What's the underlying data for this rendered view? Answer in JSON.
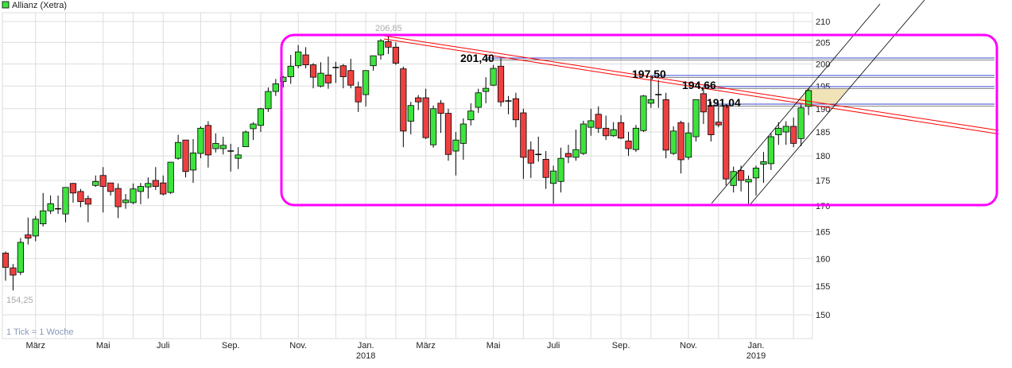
{
  "legend": {
    "label": "Allianz (Xetra)",
    "color": "#3de43d"
  },
  "note": "1 Tick = 1 Woche",
  "annotations": {
    "high": "206,85",
    "low": "154,25",
    "level1": "201,40",
    "level2": "197,50",
    "level3": "194,66",
    "level4": "191,04"
  },
  "colors": {
    "up": "#3de43d",
    "down": "#ef4040",
    "box": "#ff00ff",
    "trend": "#ff0000",
    "support": "#3344cc",
    "zone": "#efe0b0"
  },
  "chart_data": {
    "type": "candlestick",
    "title": "Allianz (Xetra)",
    "interval": "1 Tick = 1 Woche",
    "y_scale": "log",
    "ylim": [
      146,
      212
    ],
    "grid": true,
    "legend": "top-left",
    "y_ticks": [
      150,
      155,
      160,
      165,
      170,
      175,
      180,
      185,
      190,
      195,
      200,
      205,
      210
    ],
    "x_ticks": [
      {
        "week": 4,
        "label": "März",
        "year": ""
      },
      {
        "week": 13,
        "label": "Mai",
        "year": ""
      },
      {
        "week": 21,
        "label": "Juli",
        "year": ""
      },
      {
        "week": 30,
        "label": "Sep.",
        "year": ""
      },
      {
        "week": 39,
        "label": "Nov.",
        "year": ""
      },
      {
        "week": 48,
        "label": "Jan.",
        "year": "2018"
      },
      {
        "week": 56,
        "label": "März",
        "year": ""
      },
      {
        "week": 65,
        "label": "Mai",
        "year": ""
      },
      {
        "week": 73,
        "label": "Juli",
        "year": ""
      },
      {
        "week": 82,
        "label": "Sep.",
        "year": ""
      },
      {
        "week": 91,
        "label": "Nov.",
        "year": ""
      },
      {
        "week": 100,
        "label": "Jan.",
        "year": "2019"
      }
    ],
    "ohlc_fields": [
      "open",
      "high",
      "low",
      "close"
    ],
    "candles": [
      [
        161.0,
        161.3,
        156.0,
        158.4
      ],
      [
        158.3,
        159.0,
        154.25,
        157.0
      ],
      [
        157.5,
        163.8,
        157.0,
        163.0
      ],
      [
        164.4,
        167.7,
        162.6,
        163.8
      ],
      [
        164.2,
        168.0,
        163.2,
        167.4
      ],
      [
        166.5,
        172.5,
        166.0,
        169.0
      ],
      [
        169.0,
        172.0,
        168.4,
        170.4
      ],
      [
        169.4,
        172.0,
        168.4,
        169.4
      ],
      [
        168.4,
        173.6,
        166.8,
        173.6
      ],
      [
        174.4,
        174.5,
        170.6,
        172.5
      ],
      [
        172.8,
        173.3,
        169.7,
        170.8
      ],
      [
        171.4,
        172.0,
        166.8,
        170.3
      ],
      [
        174.0,
        176.0,
        173.7,
        174.8
      ],
      [
        176.0,
        177.7,
        168.7,
        173.8
      ],
      [
        174.5,
        174.5,
        172.0,
        172.8
      ],
      [
        173.4,
        174.4,
        167.6,
        169.8
      ],
      [
        170.6,
        172.3,
        169.4,
        171.1
      ],
      [
        170.6,
        174.4,
        170.3,
        173.3
      ],
      [
        172.8,
        174.5,
        170.3,
        173.8
      ],
      [
        173.7,
        175.6,
        171.4,
        174.4
      ],
      [
        175.0,
        177.7,
        173.1,
        173.8
      ],
      [
        174.5,
        176.0,
        172.0,
        172.3
      ],
      [
        172.6,
        178.7,
        172.3,
        178.7
      ],
      [
        179.5,
        184.4,
        179.2,
        182.8
      ],
      [
        183.3,
        183.3,
        175.6,
        176.8
      ],
      [
        177.1,
        183.5,
        174.5,
        180.6
      ],
      [
        180.5,
        186.2,
        179.5,
        185.8
      ],
      [
        186.4,
        187.3,
        177.6,
        180.2
      ],
      [
        181.5,
        184.7,
        180.7,
        182.6
      ],
      [
        181.5,
        184.0,
        180.3,
        182.2
      ],
      [
        181.0,
        182.5,
        176.8,
        181.0
      ],
      [
        179.5,
        181.8,
        177.3,
        180.2
      ],
      [
        181.9,
        185.3,
        181.9,
        185.0
      ],
      [
        185.7,
        187.1,
        183.3,
        186.7
      ],
      [
        186.4,
        190.2,
        185.0,
        190.0
      ],
      [
        190.0,
        194.7,
        189.3,
        193.8
      ],
      [
        193.8,
        196.6,
        192.8,
        195.5
      ],
      [
        196.0,
        197.3,
        194.7,
        197.0
      ],
      [
        197.1,
        202.1,
        195.5,
        199.5
      ],
      [
        199.6,
        204.4,
        199.0,
        202.8
      ],
      [
        202.1,
        203.9,
        199.0,
        199.8
      ],
      [
        199.8,
        200.2,
        194.5,
        197.0
      ],
      [
        195.0,
        200.4,
        194.7,
        197.9
      ],
      [
        197.5,
        201.7,
        194.4,
        195.7
      ],
      [
        199.2,
        200.5,
        195.7,
        199.2
      ],
      [
        199.6,
        200.0,
        194.5,
        197.1
      ],
      [
        198.5,
        201.2,
        194.5,
        195.2
      ],
      [
        194.8,
        196.0,
        189.3,
        191.5
      ],
      [
        193.1,
        198.5,
        190.5,
        198.5
      ],
      [
        199.6,
        201.9,
        198.5,
        201.9
      ],
      [
        202.1,
        205.8,
        201.0,
        205.4
      ],
      [
        205.2,
        206.85,
        202.3,
        203.9
      ],
      [
        203.9,
        205.0,
        199.8,
        200.2
      ],
      [
        198.9,
        199.4,
        181.8,
        185.2
      ],
      [
        187.3,
        191.5,
        184.5,
        190.7
      ],
      [
        192.4,
        193.0,
        189.7,
        191.5
      ],
      [
        192.4,
        194.4,
        183.5,
        183.8
      ],
      [
        182.3,
        190.7,
        181.7,
        190.0
      ],
      [
        191.2,
        191.9,
        184.8,
        189.0
      ],
      [
        189.0,
        190.0,
        179.0,
        180.3
      ],
      [
        181.0,
        185.0,
        176.0,
        183.3
      ],
      [
        182.6,
        187.9,
        179.2,
        186.7
      ],
      [
        187.6,
        191.2,
        186.4,
        189.5
      ],
      [
        190.3,
        194.4,
        189.1,
        193.5
      ],
      [
        193.8,
        197.0,
        191.2,
        194.5
      ],
      [
        195.2,
        199.8,
        195.0,
        199.0
      ],
      [
        199.5,
        201.4,
        190.5,
        191.5
      ],
      [
        191.7,
        192.8,
        188.8,
        191.7
      ],
      [
        192.2,
        193.5,
        186.0,
        187.6
      ],
      [
        189.1,
        190.0,
        175.3,
        179.7
      ],
      [
        181.2,
        183.0,
        175.5,
        178.5
      ],
      [
        180.2,
        184.0,
        178.8,
        180.3
      ],
      [
        179.3,
        181.0,
        173.3,
        175.6
      ],
      [
        174.4,
        178.0,
        170.4,
        176.9
      ],
      [
        174.8,
        181.7,
        172.6,
        179.5
      ],
      [
        180.5,
        182.3,
        178.5,
        179.8
      ],
      [
        179.7,
        185.5,
        179.0,
        181.3
      ],
      [
        180.5,
        187.4,
        180.2,
        186.7
      ],
      [
        186.0,
        190.0,
        184.2,
        187.4
      ],
      [
        188.8,
        190.5,
        184.8,
        185.8
      ],
      [
        185.8,
        188.5,
        183.3,
        184.2
      ],
      [
        184.2,
        187.1,
        184.0,
        185.5
      ],
      [
        187.0,
        188.6,
        183.5,
        183.7
      ],
      [
        183.1,
        185.0,
        180.0,
        181.5
      ],
      [
        181.3,
        186.5,
        180.8,
        185.8
      ],
      [
        185.3,
        193.0,
        185.0,
        192.8
      ],
      [
        191.2,
        197.5,
        190.2,
        192.0
      ],
      [
        193.1,
        196.4,
        190.2,
        193.1
      ],
      [
        192.0,
        193.5,
        179.5,
        181.2
      ],
      [
        180.5,
        186.2,
        180.2,
        185.2
      ],
      [
        187.0,
        187.4,
        176.4,
        179.2
      ],
      [
        179.7,
        187.0,
        179.2,
        184.8
      ],
      [
        184.0,
        192.0,
        183.0,
        192.0
      ],
      [
        193.3,
        194.66,
        186.7,
        189.3
      ],
      [
        190.7,
        191.5,
        183.0,
        184.4
      ],
      [
        187.1,
        190.9,
        186.0,
        186.5
      ],
      [
        190.7,
        191.04,
        174.0,
        175.3
      ],
      [
        174.0,
        177.8,
        172.6,
        176.8
      ],
      [
        177.0,
        178.0,
        172.8,
        175.0
      ],
      [
        174.7,
        176.0,
        170.3,
        175.2
      ],
      [
        175.5,
        178.0,
        172.0,
        177.5
      ],
      [
        178.3,
        180.8,
        174.5,
        178.8
      ],
      [
        178.4,
        184.7,
        177.1,
        184.0
      ],
      [
        184.4,
        187.1,
        182.3,
        185.8
      ],
      [
        185.0,
        187.3,
        182.3,
        186.2
      ],
      [
        186.2,
        188.1,
        181.8,
        182.6
      ],
      [
        183.6,
        190.9,
        182.0,
        190.2
      ],
      [
        190.5,
        194.4,
        188.6,
        194.0
      ]
    ]
  }
}
